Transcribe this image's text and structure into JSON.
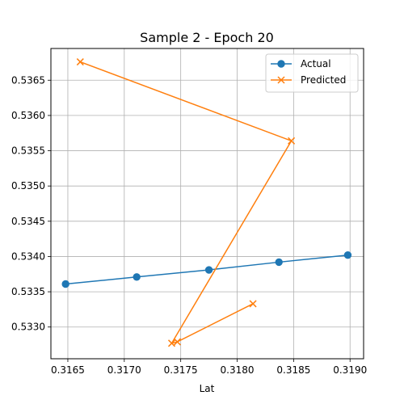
{
  "chart_data": {
    "type": "line",
    "title": "Sample 2 - Epoch 20",
    "xlabel": "Lat",
    "ylabel": "",
    "xlim": [
      0.31635,
      0.31912
    ],
    "ylim": [
      0.53255,
      0.53695
    ],
    "xticks": [
      0.3165,
      0.317,
      0.3175,
      0.318,
      0.3185,
      0.319
    ],
    "xtick_labels": [
      "0.3165",
      "0.3170",
      "0.3175",
      "0.3180",
      "0.3185",
      "0.3190"
    ],
    "yticks": [
      0.533,
      0.5335,
      0.534,
      0.5345,
      0.535,
      0.5355,
      0.536,
      0.5365
    ],
    "ytick_labels": [
      "0.5330",
      "0.5335",
      "0.5340",
      "0.5345",
      "0.5350",
      "0.5355",
      "0.5360",
      "0.5365"
    ],
    "grid": true,
    "legend": "top-right",
    "series": [
      {
        "name": "Actual",
        "color": "#1f77b4",
        "marker": "circle",
        "x": [
          0.31648,
          0.31711,
          0.31775,
          0.31837,
          0.31898
        ],
        "y": [
          0.53361,
          0.53371,
          0.53381,
          0.53392,
          0.53402
        ]
      },
      {
        "name": "Predicted",
        "color": "#ff7f0e",
        "marker": "x",
        "x": [
          0.31661,
          0.31848,
          0.31742,
          0.31747,
          0.31814
        ],
        "y": [
          0.53676,
          0.53564,
          0.53277,
          0.53279,
          0.53333
        ]
      }
    ]
  }
}
